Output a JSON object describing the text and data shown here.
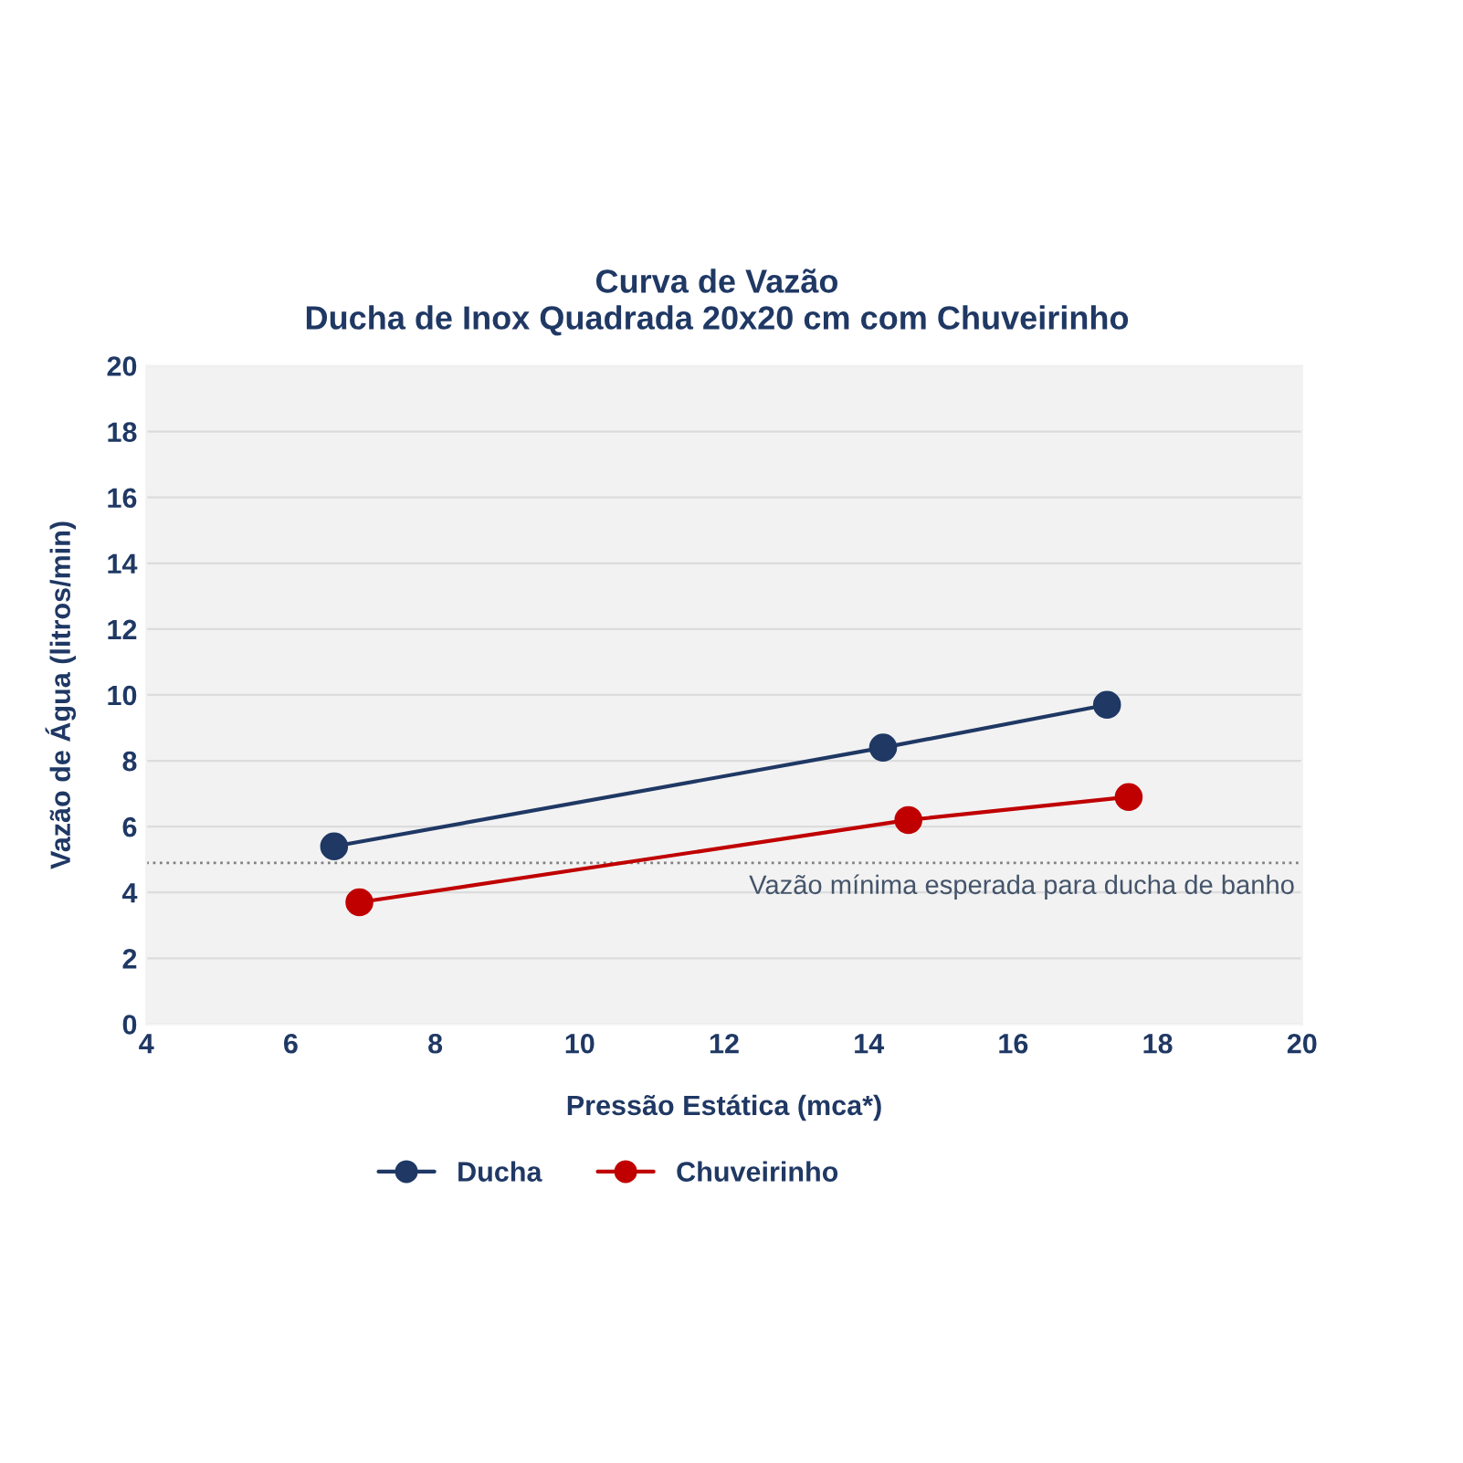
{
  "chart_data": {
    "type": "line",
    "title": "Curva de Vazão",
    "subtitle": "Ducha de Inox Quadrada 20x20 cm com Chuveirinho",
    "xlabel": "Pressão Estática (mca*)",
    "ylabel": "Vazão de Água (litros/min)",
    "series": [
      {
        "name": "Ducha",
        "color": "#1f3864",
        "x": [
          6.6,
          14.2,
          17.3
        ],
        "values": [
          5.4,
          8.4,
          9.7
        ]
      },
      {
        "name": "Chuveirinho",
        "color": "#c00000",
        "x": [
          6.95,
          14.55,
          17.6
        ],
        "values": [
          3.7,
          6.2,
          6.9
        ]
      }
    ],
    "xlim": [
      4,
      20
    ],
    "xticks": [
      4,
      6,
      8,
      10,
      12,
      14,
      16,
      18,
      20
    ],
    "ylim": [
      0,
      20
    ],
    "yticks": [
      0,
      2,
      4,
      6,
      8,
      10,
      12,
      14,
      16,
      18,
      20
    ],
    "ref_lines": [
      {
        "axis": "y",
        "value": 4.9,
        "label": "Vazão mínima esperada para ducha de banho",
        "color": "#808080",
        "line_style": "dotted"
      }
    ],
    "grid": "y",
    "legend": "bottom",
    "marker": "circle",
    "line_style": "solid"
  }
}
